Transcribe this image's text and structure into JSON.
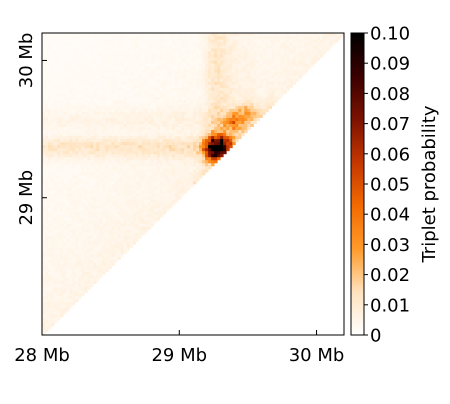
{
  "chart_data": {
    "type": "heatmap",
    "title": "",
    "xlabel": "",
    "ylabel": "",
    "x_ticks": [
      {
        "value": 28,
        "label": "28 Mb"
      },
      {
        "value": 29,
        "label": "29 Mb"
      },
      {
        "value": 30,
        "label": "30 Mb"
      }
    ],
    "y_ticks": [
      {
        "value": 29,
        "label": "29 Mb"
      },
      {
        "value": 30,
        "label": "30 Mb"
      }
    ],
    "xlim": [
      28,
      30.2
    ],
    "ylim": [
      28,
      30.2
    ],
    "matrix": "upper-triangle",
    "hotspots": [
      {
        "x": 29.32,
        "y": 29.38,
        "value": 0.065
      },
      {
        "x": 29.25,
        "y": 29.4,
        "value": 0.035
      },
      {
        "x": 29.25,
        "y": 29.33,
        "value": 0.05
      },
      {
        "x": 29.4,
        "y": 29.55,
        "value": 0.03
      },
      {
        "x": 29.5,
        "y": 29.62,
        "value": 0.018
      }
    ],
    "colorbar": {
      "label": "Triplet probability",
      "min": 0,
      "max": 0.1,
      "ticks": [
        {
          "value": 0,
          "label": "0"
        },
        {
          "value": 0.01,
          "label": "0.01"
        },
        {
          "value": 0.02,
          "label": "0.02"
        },
        {
          "value": 0.03,
          "label": "0.03"
        },
        {
          "value": 0.04,
          "label": "0.04"
        },
        {
          "value": 0.05,
          "label": "0.05"
        },
        {
          "value": 0.06,
          "label": "0.06"
        },
        {
          "value": 0.07,
          "label": "0.07"
        },
        {
          "value": 0.08,
          "label": "0.08"
        },
        {
          "value": 0.09,
          "label": "0.09"
        },
        {
          "value": 0.1,
          "label": "0.10"
        }
      ],
      "colors": [
        "#ffffff",
        "#ffe2bd",
        "#ff9a2a",
        "#f26a00",
        "#c43700",
        "#7c1200",
        "#3a0000",
        "#000000"
      ]
    }
  }
}
